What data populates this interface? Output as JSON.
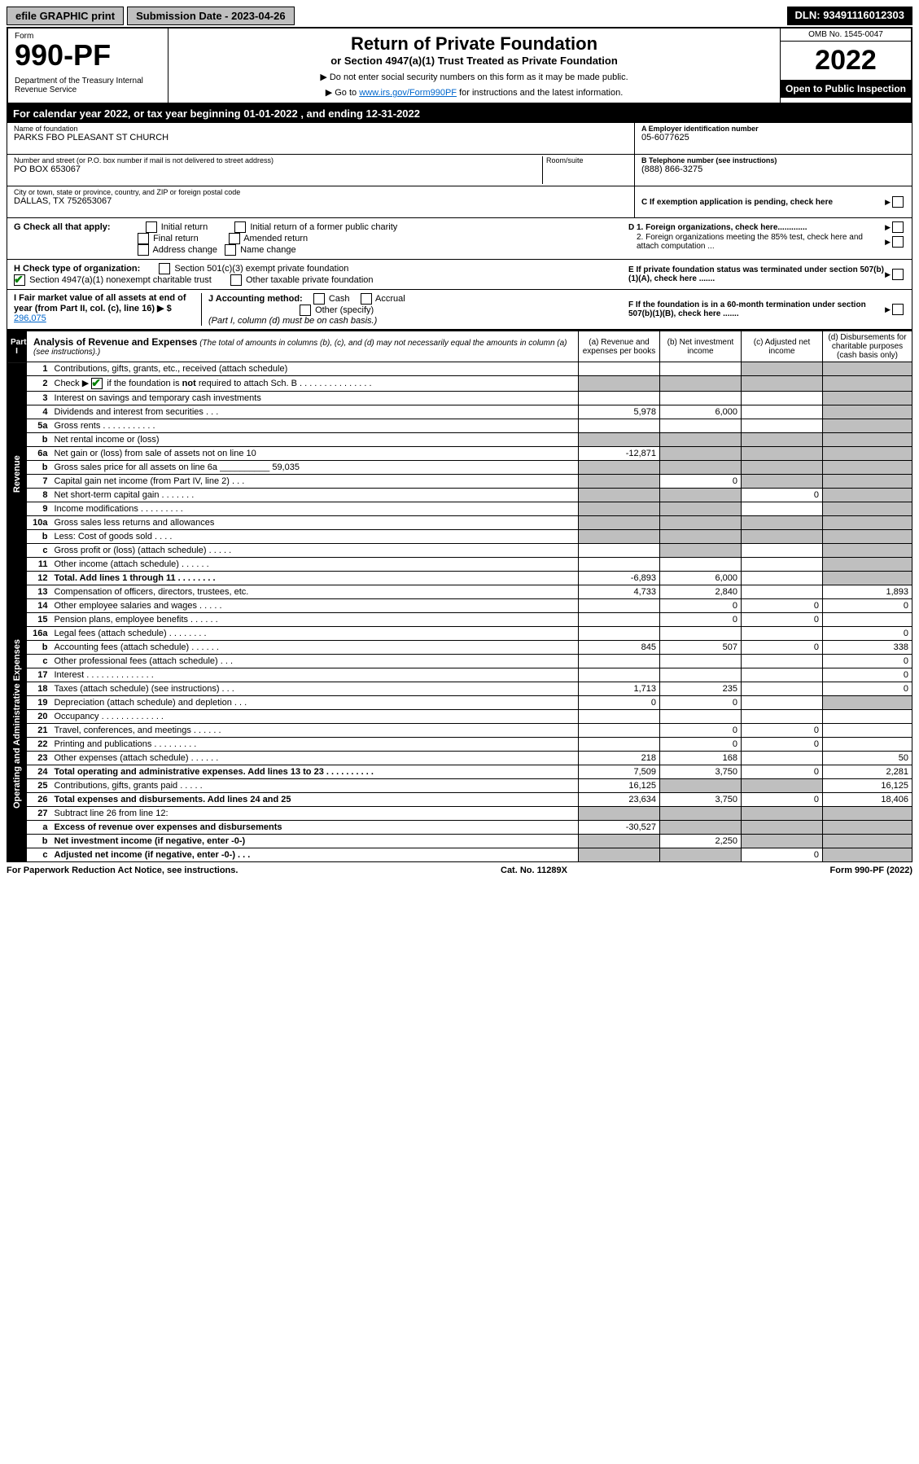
{
  "topbar": {
    "efile": "efile GRAPHIC print",
    "submission": "Submission Date - 2023-04-26",
    "dln": "DLN: 93491116012303"
  },
  "header": {
    "form_label": "Form",
    "form_num": "990-PF",
    "dept": "Department of the Treasury\nInternal Revenue Service",
    "title": "Return of Private Foundation",
    "subtitle": "or Section 4947(a)(1) Trust Treated as Private Foundation",
    "instr1": "▶ Do not enter social security numbers on this form as it may be made public.",
    "instr2_pre": "▶ Go to ",
    "instr2_link": "www.irs.gov/Form990PF",
    "instr2_post": " for instructions and the latest information.",
    "omb": "OMB No. 1545-0047",
    "year": "2022",
    "open": "Open to Public Inspection"
  },
  "cal_year": "For calendar year 2022, or tax year beginning 01-01-2022                                    , and ending 12-31-2022",
  "id": {
    "name_label": "Name of foundation",
    "name": "PARKS FBO PLEASANT ST CHURCH",
    "a_label": "A Employer identification number",
    "a_val": "05-6077625",
    "addr_label": "Number and street (or P.O. box number if mail is not delivered to street address)",
    "addr": "PO BOX 653067",
    "room_label": "Room/suite",
    "b_label": "B Telephone number (see instructions)",
    "b_val": "(888) 866-3275",
    "city_label": "City or town, state or province, country, and ZIP or foreign postal code",
    "city": "DALLAS, TX  752653067",
    "c_label": "C If exemption application is pending, check here"
  },
  "checks": {
    "g_label": "G Check all that apply:",
    "g_opts": [
      "Initial return",
      "Initial return of a former public charity",
      "Final return",
      "Amended return",
      "Address change",
      "Name change"
    ],
    "d1": "D 1. Foreign organizations, check here.............",
    "d2": "2. Foreign organizations meeting the 85% test, check here and attach computation ...",
    "h_label": "H Check type of organization:",
    "h1": "Section 501(c)(3) exempt private foundation",
    "h2": "Section 4947(a)(1) nonexempt charitable trust",
    "h3": "Other taxable private foundation",
    "e": "E If private foundation status was terminated under section 507(b)(1)(A), check here .......",
    "i_label": "I Fair market value of all assets at end of year (from Part II, col. (c), line 16) ▶ $",
    "i_val": "296,075",
    "j_label": "J Accounting method:",
    "j_opts": [
      "Cash",
      "Accrual",
      "Other (specify)"
    ],
    "j_note": "(Part I, column (d) must be on cash basis.)",
    "f": "F If the foundation is in a 60-month termination under section 507(b)(1)(B), check here ......."
  },
  "part1": {
    "label": "Part I",
    "title": "Analysis of Revenue and Expenses",
    "note": "(The total of amounts in columns (b), (c), and (d) may not necessarily equal the amounts in column (a) (see instructions).)",
    "cols": {
      "a": "(a) Revenue and expenses per books",
      "b": "(b) Net investment income",
      "c": "(c) Adjusted net income",
      "d": "(d) Disbursements for charitable purposes (cash basis only)"
    }
  },
  "side_labels": {
    "revenue": "Revenue",
    "expenses": "Operating and Administrative Expenses"
  },
  "rows": [
    {
      "n": "1",
      "desc": "Contributions, gifts, grants, etc., received (attach schedule)",
      "a": "",
      "b": "",
      "c": "S",
      "d": "S"
    },
    {
      "n": "2",
      "desc": "Check ▶ ☑ if the foundation is not required to attach Sch. B",
      "a": "S",
      "b": "S",
      "c": "S",
      "d": "S",
      "checkline": true
    },
    {
      "n": "3",
      "desc": "Interest on savings and temporary cash investments",
      "a": "",
      "b": "",
      "c": "",
      "d": "S"
    },
    {
      "n": "4",
      "desc": "Dividends and interest from securities      .   .   .",
      "a": "5,978",
      "b": "6,000",
      "c": "",
      "d": "S"
    },
    {
      "n": "5a",
      "desc": "Gross rents       .   .   .   .   .   .   .   .   .   .   .",
      "a": "",
      "b": "",
      "c": "",
      "d": "S"
    },
    {
      "n": "b",
      "desc": "Net rental income or (loss)",
      "a": "S",
      "b": "S",
      "c": "S",
      "d": "S",
      "sub": true
    },
    {
      "n": "6a",
      "desc": "Net gain or (loss) from sale of assets not on line 10",
      "a": "-12,871",
      "b": "S",
      "c": "S",
      "d": "S"
    },
    {
      "n": "b",
      "desc": "Gross sales price for all assets on line 6a __________ 59,035",
      "a": "S",
      "b": "S",
      "c": "S",
      "d": "S",
      "sub": true
    },
    {
      "n": "7",
      "desc": "Capital gain net income (from Part IV, line 2)   .   .   .",
      "a": "S",
      "b": "0",
      "c": "S",
      "d": "S"
    },
    {
      "n": "8",
      "desc": "Net short-term capital gain   .   .   .   .   .   .   .",
      "a": "S",
      "b": "S",
      "c": "0",
      "d": "S"
    },
    {
      "n": "9",
      "desc": "Income modifications  .   .   .   .   .   .   .   .   .",
      "a": "S",
      "b": "S",
      "c": "",
      "d": "S"
    },
    {
      "n": "10a",
      "desc": "Gross sales less returns and allowances",
      "a": "S",
      "b": "S",
      "c": "S",
      "d": "S",
      "sub": true
    },
    {
      "n": "b",
      "desc": "Less: Cost of goods sold     .   .   .   .",
      "a": "S",
      "b": "S",
      "c": "S",
      "d": "S",
      "sub": true
    },
    {
      "n": "c",
      "desc": "Gross profit or (loss) (attach schedule)     .   .   .   .   .",
      "a": "",
      "b": "S",
      "c": "",
      "d": "S"
    },
    {
      "n": "11",
      "desc": "Other income (attach schedule)    .   .   .   .   .   .",
      "a": "",
      "b": "",
      "c": "",
      "d": "S"
    },
    {
      "n": "12",
      "desc": "Total. Add lines 1 through 11   .   .   .   .   .   .   .   .",
      "a": "-6,893",
      "b": "6,000",
      "c": "",
      "d": "S",
      "bold": true
    },
    {
      "n": "13",
      "desc": "Compensation of officers, directors, trustees, etc.",
      "a": "4,733",
      "b": "2,840",
      "c": "",
      "d": "1,893"
    },
    {
      "n": "14",
      "desc": "Other employee salaries and wages    .   .   .   .   .",
      "a": "",
      "b": "0",
      "c": "0",
      "d": "0"
    },
    {
      "n": "15",
      "desc": "Pension plans, employee benefits   .   .   .   .   .   .",
      "a": "",
      "b": "0",
      "c": "0",
      "d": ""
    },
    {
      "n": "16a",
      "desc": "Legal fees (attach schedule)  .   .   .   .   .   .   .   .",
      "a": "",
      "b": "",
      "c": "",
      "d": "0"
    },
    {
      "n": "b",
      "desc": "Accounting fees (attach schedule)  .   .   .   .   .   .",
      "a": "845",
      "b": "507",
      "c": "0",
      "d": "338"
    },
    {
      "n": "c",
      "desc": "Other professional fees (attach schedule)    .   .   .",
      "a": "",
      "b": "",
      "c": "",
      "d": "0"
    },
    {
      "n": "17",
      "desc": "Interest  .   .   .   .   .   .   .   .   .   .   .   .   .   .",
      "a": "",
      "b": "",
      "c": "",
      "d": "0"
    },
    {
      "n": "18",
      "desc": "Taxes (attach schedule) (see instructions)     .   .   .",
      "a": "1,713",
      "b": "235",
      "c": "",
      "d": "0"
    },
    {
      "n": "19",
      "desc": "Depreciation (attach schedule) and depletion    .   .   .",
      "a": "0",
      "b": "0",
      "c": "",
      "d": "S"
    },
    {
      "n": "20",
      "desc": "Occupancy  .   .   .   .   .   .   .   .   .   .   .   .   .",
      "a": "",
      "b": "",
      "c": "",
      "d": ""
    },
    {
      "n": "21",
      "desc": "Travel, conferences, and meetings  .   .   .   .   .   .",
      "a": "",
      "b": "0",
      "c": "0",
      "d": ""
    },
    {
      "n": "22",
      "desc": "Printing and publications  .   .   .   .   .   .   .   .   .",
      "a": "",
      "b": "0",
      "c": "0",
      "d": ""
    },
    {
      "n": "23",
      "desc": "Other expenses (attach schedule)  .   .   .   .   .   .",
      "a": "218",
      "b": "168",
      "c": "",
      "d": "50"
    },
    {
      "n": "24",
      "desc": "Total operating and administrative expenses. Add lines 13 to 23  .   .   .   .   .   .   .   .   .   .",
      "a": "7,509",
      "b": "3,750",
      "c": "0",
      "d": "2,281",
      "bold": true
    },
    {
      "n": "25",
      "desc": "Contributions, gifts, grants paid     .   .   .   .   .",
      "a": "16,125",
      "b": "S",
      "c": "S",
      "d": "16,125"
    },
    {
      "n": "26",
      "desc": "Total expenses and disbursements. Add lines 24 and 25",
      "a": "23,634",
      "b": "3,750",
      "c": "0",
      "d": "18,406",
      "bold": true
    },
    {
      "n": "27",
      "desc": "Subtract line 26 from line 12:",
      "a": "S",
      "b": "S",
      "c": "S",
      "d": "S"
    },
    {
      "n": "a",
      "desc": "Excess of revenue over expenses and disbursements",
      "a": "-30,527",
      "b": "S",
      "c": "S",
      "d": "S",
      "bold": true
    },
    {
      "n": "b",
      "desc": "Net investment income (if negative, enter -0-)",
      "a": "S",
      "b": "2,250",
      "c": "S",
      "d": "S",
      "bold": true
    },
    {
      "n": "c",
      "desc": "Adjusted net income (if negative, enter -0-)   .   .   .",
      "a": "S",
      "b": "S",
      "c": "0",
      "d": "S",
      "bold": true
    }
  ],
  "footer": {
    "left": "For Paperwork Reduction Act Notice, see instructions.",
    "mid": "Cat. No. 11289X",
    "right": "Form 990-PF (2022)"
  }
}
